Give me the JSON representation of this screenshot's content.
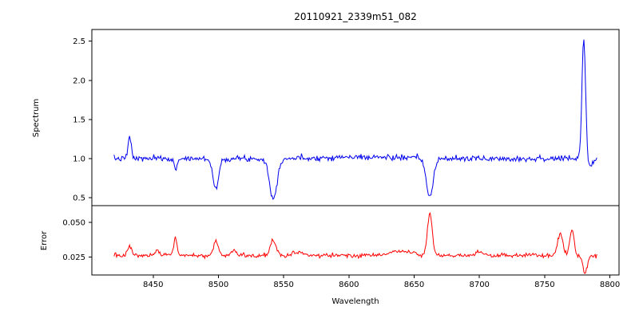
{
  "chart_data": {
    "type": "line",
    "title": "20110921_2339m51_082",
    "xlabel": "Wavelength",
    "grid": false,
    "legend": "none",
    "x_data_range": [
      8420,
      8790
    ],
    "xlim": [
      8403,
      8807
    ],
    "x_tick_values": [
      8450,
      8500,
      8550,
      8600,
      8650,
      8700,
      8750,
      8800
    ],
    "x_tick_labels": [
      "8450",
      "8500",
      "8550",
      "8600",
      "8650",
      "8700",
      "8750",
      "8800"
    ],
    "panels": [
      {
        "name": "spectrum",
        "ylabel": "Spectrum",
        "ylim": [
          0.4,
          2.65
        ],
        "y_tick_values": [
          0.5,
          1.0,
          1.5,
          2.0,
          2.5
        ],
        "y_tick_labels": [
          "0.5",
          "1.0",
          "1.5",
          "2.0",
          "2.5"
        ],
        "series": {
          "name": "spectrum-flux",
          "color": "#0000ee",
          "line_width": 1,
          "baseline": 1.0,
          "noise_sigma": 0.018,
          "n_points": 560,
          "seed": 7,
          "features": [
            {
              "center": 8432,
              "amplitude": 0.28,
              "sigma": 1.2
            },
            {
              "center": 8467,
              "amplitude": -0.14,
              "sigma": 1.2
            },
            {
              "center": 8498,
              "amplitude": -0.38,
              "sigma": 2.2
            },
            {
              "center": 8542,
              "amplitude": -0.52,
              "sigma": 2.8
            },
            {
              "center": 8610,
              "amplitude": 0.02,
              "sigma": 30
            },
            {
              "center": 8662,
              "amplitude": -0.5,
              "sigma": 2.6
            },
            {
              "center": 8780,
              "amplitude": 1.55,
              "sigma": 1.4
            },
            {
              "center": 8785,
              "amplitude": -0.12,
              "sigma": 3
            },
            {
              "center": 8790,
              "amplitude": 0.05,
              "sigma": 4
            }
          ]
        }
      },
      {
        "name": "error",
        "ylabel": "Error",
        "ylim": [
          0.012,
          0.062
        ],
        "y_tick_values": [
          0.025,
          0.05
        ],
        "y_tick_labels": [
          "0.025",
          "0.050"
        ],
        "series": {
          "name": "error-level",
          "color": "#ff0000",
          "line_width": 1,
          "baseline": 0.026,
          "noise_sigma": 0.0008,
          "n_points": 560,
          "seed": 13,
          "features": [
            {
              "center": 8432,
              "amplitude": 0.008,
              "sigma": 1.3
            },
            {
              "center": 8453,
              "amplitude": 0.004,
              "sigma": 1.2
            },
            {
              "center": 8467,
              "amplitude": 0.013,
              "sigma": 1.3
            },
            {
              "center": 8498,
              "amplitude": 0.01,
              "sigma": 1.8
            },
            {
              "center": 8512,
              "amplitude": 0.004,
              "sigma": 1.5
            },
            {
              "center": 8542,
              "amplitude": 0.011,
              "sigma": 2.2
            },
            {
              "center": 8560,
              "amplitude": 0.003,
              "sigma": 3
            },
            {
              "center": 8640,
              "amplitude": 0.003,
              "sigma": 10
            },
            {
              "center": 8662,
              "amplitude": 0.03,
              "sigma": 1.8
            },
            {
              "center": 8700,
              "amplitude": 0.003,
              "sigma": 2
            },
            {
              "center": 8762,
              "amplitude": 0.016,
              "sigma": 2.0
            },
            {
              "center": 8771,
              "amplitude": 0.018,
              "sigma": 1.6
            },
            {
              "center": 8781,
              "amplitude": -0.013,
              "sigma": 1.6
            }
          ]
        }
      }
    ]
  }
}
